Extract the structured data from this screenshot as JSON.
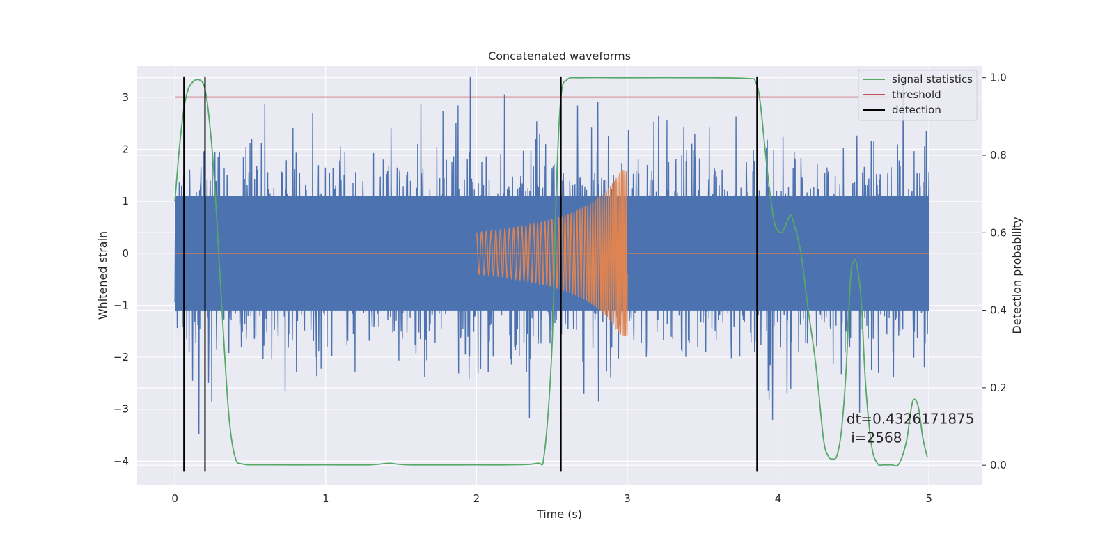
{
  "chart_data": {
    "type": "line",
    "title": "Concatenated waveforms",
    "xlabel": "Time (s)",
    "ylabel": "Whitened strain",
    "ylabel_right": "Detection probability",
    "xlim": [
      -0.25,
      5.35
    ],
    "ylim": [
      -4.45,
      3.6
    ],
    "ylim_right": [
      -0.05,
      1.03
    ],
    "x_ticks": [
      0,
      1,
      2,
      3,
      4,
      5
    ],
    "y_ticks": [
      -4,
      -3,
      -2,
      -1,
      0,
      1,
      2,
      3
    ],
    "y_ticks_right": [
      0.0,
      0.2,
      0.4,
      0.6,
      0.8,
      1.0
    ],
    "x_tick_labels": [
      "0",
      "1",
      "2",
      "3",
      "4",
      "5"
    ],
    "y_tick_labels": [
      "−4",
      "−3",
      "−2",
      "−1",
      "0",
      "1",
      "2",
      "3"
    ],
    "y_tick_labels_right": [
      "0.0",
      "0.2",
      "0.4",
      "0.6",
      "0.8",
      "1.0"
    ],
    "grid": true,
    "legend_position": "top-right",
    "colors": {
      "noise": "#4c72b0",
      "injection": "#dd8452",
      "statistics": "#55a868",
      "threshold": "#c44e52",
      "detection": "#000000",
      "axes_bg": "#eaeaf2",
      "grid": "#ffffff"
    },
    "series": [
      {
        "name": "",
        "kind": "noise",
        "axis": "left",
        "x_range": [
          0,
          5
        ],
        "envelope_q": 1.1,
        "peak_range": [
          -4.2,
          3.4
        ]
      },
      {
        "name": "",
        "kind": "chirp",
        "axis": "left",
        "x_range": [
          2.0,
          3.0
        ],
        "start_amplitude": 0.4,
        "end_amplitude": 1.6,
        "zero_line_range": [
          0,
          5
        ]
      },
      {
        "name": "signal statistics",
        "axis": "right",
        "x": [
          0,
          0.03,
          0.06,
          0.08,
          0.1,
          0.14,
          0.18,
          0.2,
          0.22,
          0.25,
          0.28,
          0.32,
          0.36,
          0.4,
          0.45,
          0.6,
          1.0,
          1.3,
          1.42,
          1.55,
          2.0,
          2.2,
          2.4,
          2.45,
          2.5,
          2.53,
          2.56,
          2.6,
          2.7,
          3.0,
          3.5,
          3.8,
          3.85,
          3.88,
          3.92,
          3.95,
          3.98,
          4.02,
          4.05,
          4.08,
          4.1,
          4.15,
          4.2,
          4.25,
          4.3,
          4.33,
          4.36,
          4.39,
          4.42,
          4.45,
          4.48,
          4.5,
          4.52,
          4.55,
          4.58,
          4.62,
          4.66,
          4.7,
          4.75,
          4.8,
          4.85,
          4.88,
          4.9,
          4.93,
          4.96,
          4.99
        ],
        "y": [
          0.68,
          0.82,
          0.92,
          0.96,
          0.98,
          0.995,
          0.99,
          0.97,
          0.92,
          0.8,
          0.62,
          0.35,
          0.12,
          0.02,
          0.003,
          0.001,
          0.001,
          0.001,
          0.005,
          0.001,
          0.001,
          0.001,
          0.005,
          0.03,
          0.3,
          0.72,
          0.95,
          0.995,
          1.0,
          1.0,
          1.0,
          0.998,
          0.99,
          0.94,
          0.79,
          0.69,
          0.62,
          0.6,
          0.62,
          0.645,
          0.63,
          0.55,
          0.4,
          0.26,
          0.07,
          0.025,
          0.016,
          0.025,
          0.09,
          0.24,
          0.48,
          0.525,
          0.52,
          0.43,
          0.21,
          0.05,
          0.004,
          0.001,
          0.001,
          0.003,
          0.06,
          0.14,
          0.17,
          0.15,
          0.07,
          0.02
        ]
      },
      {
        "name": "threshold",
        "axis": "right",
        "x": [
          0,
          5
        ],
        "y": [
          0.95,
          0.95
        ]
      },
      {
        "name": "detection",
        "axis": "left",
        "vlines": [
          0.06,
          0.2,
          2.56,
          3.86
        ],
        "ymin": -4.2,
        "ymax": 3.4
      }
    ],
    "annotation": {
      "line1": "dt=0.4326171875",
      "line2": " i=2568",
      "x": 4.5,
      "y": 0.1
    }
  }
}
